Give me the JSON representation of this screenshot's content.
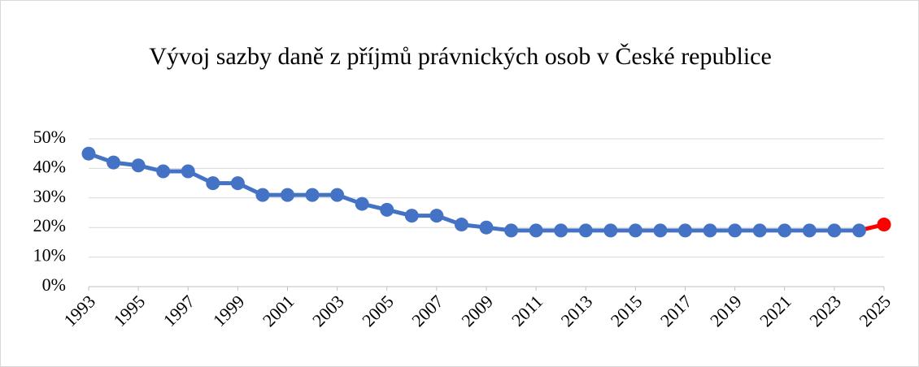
{
  "chart_data": {
    "type": "line",
    "title": "Vývoj sazby daně z příjmů právnických osob v České republice",
    "x": [
      1993,
      1994,
      1995,
      1996,
      1997,
      1998,
      1999,
      2000,
      2001,
      2002,
      2003,
      2004,
      2005,
      2006,
      2007,
      2008,
      2009,
      2010,
      2011,
      2012,
      2013,
      2014,
      2015,
      2016,
      2017,
      2018,
      2019,
      2020,
      2021,
      2022,
      2023,
      2024,
      2025
    ],
    "series": [
      {
        "color": "#4472c4",
        "values": [
          45,
          42,
          41,
          39,
          39,
          35,
          35,
          31,
          31,
          31,
          31,
          28,
          26,
          24,
          24,
          21,
          20,
          19,
          19,
          19,
          19,
          19,
          19,
          19,
          19,
          19,
          19,
          19,
          19,
          19,
          19,
          19,
          21
        ],
        "point_colors": [
          "#4472c4",
          "#4472c4",
          "#4472c4",
          "#4472c4",
          "#4472c4",
          "#4472c4",
          "#4472c4",
          "#4472c4",
          "#4472c4",
          "#4472c4",
          "#4472c4",
          "#4472c4",
          "#4472c4",
          "#4472c4",
          "#4472c4",
          "#4472c4",
          "#4472c4",
          "#4472c4",
          "#4472c4",
          "#4472c4",
          "#4472c4",
          "#4472c4",
          "#4472c4",
          "#4472c4",
          "#4472c4",
          "#4472c4",
          "#4472c4",
          "#4472c4",
          "#4472c4",
          "#4472c4",
          "#4472c4",
          "#4472c4",
          "#ff0000"
        ]
      }
    ],
    "xlim": [
      1993,
      2025
    ],
    "xticks": [
      1993,
      1995,
      1997,
      1999,
      2001,
      2003,
      2005,
      2007,
      2009,
      2011,
      2013,
      2015,
      2017,
      2019,
      2021,
      2023,
      2025
    ],
    "ylim": [
      0,
      50
    ],
    "yticks": [
      {
        "value": 0,
        "label": "0%"
      },
      {
        "value": 10,
        "label": "10%"
      },
      {
        "value": 20,
        "label": "20%"
      },
      {
        "value": 30,
        "label": "30%"
      },
      {
        "value": 40,
        "label": "40%"
      },
      {
        "value": 50,
        "label": "50%"
      }
    ],
    "grid": true
  }
}
